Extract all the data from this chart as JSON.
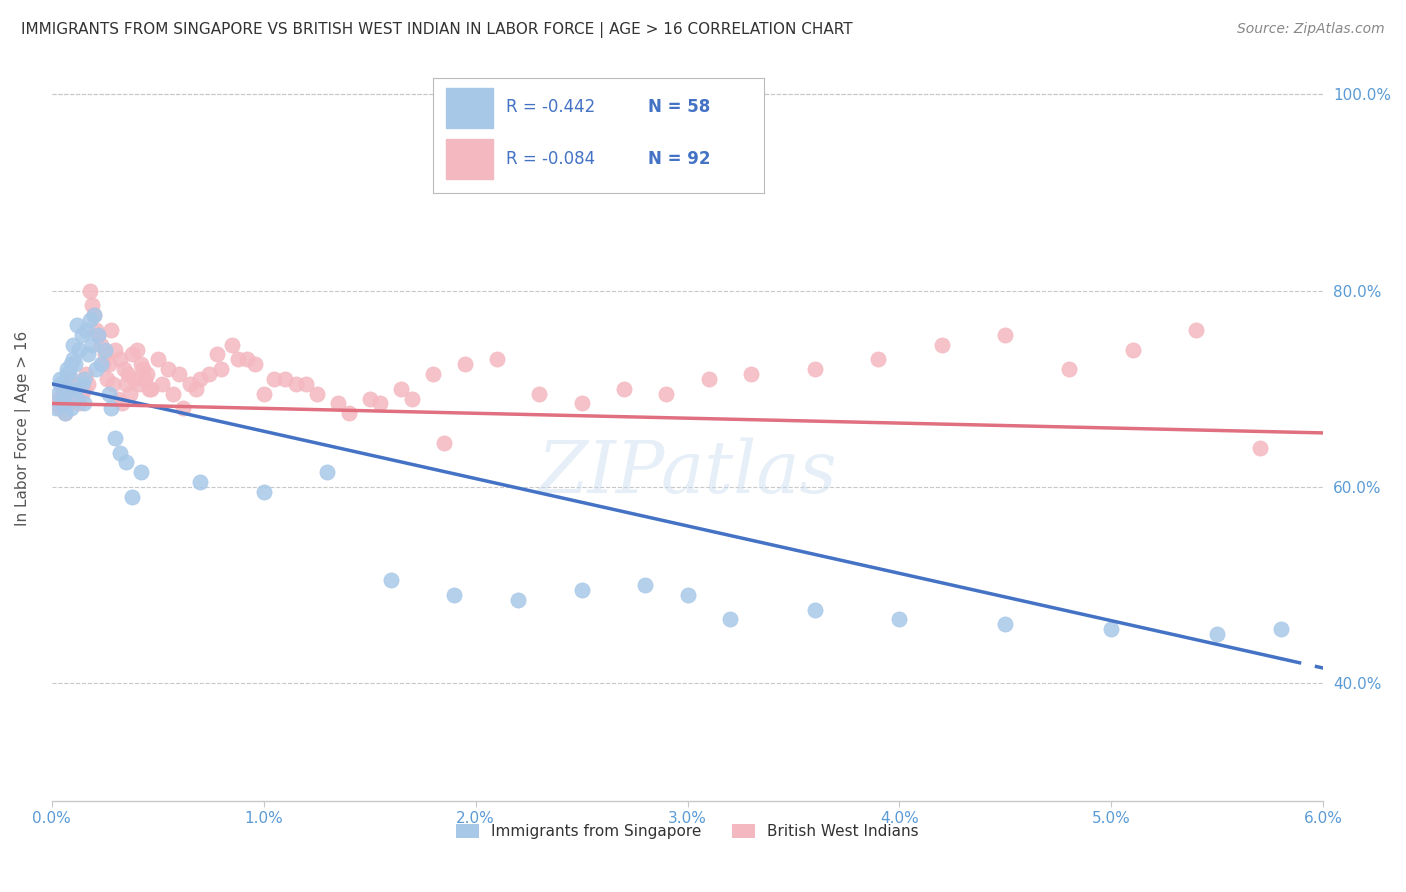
{
  "title": "IMMIGRANTS FROM SINGAPORE VS BRITISH WEST INDIAN IN LABOR FORCE | AGE > 16 CORRELATION CHART",
  "source": "Source: ZipAtlas.com",
  "ylabel": "In Labor Force | Age > 16",
  "xlim": [
    0.0,
    6.0
  ],
  "ylim": [
    28.0,
    104.0
  ],
  "yticks": [
    40.0,
    60.0,
    80.0,
    100.0
  ],
  "xticks": [
    0.0,
    1.0,
    2.0,
    3.0,
    4.0,
    5.0,
    6.0
  ],
  "legend_r_blue": "R = -0.442",
  "legend_n_blue": "N = 58",
  "legend_r_pink": "R = -0.084",
  "legend_n_pink": "N = 92",
  "legend_label_blue": "Immigrants from Singapore",
  "legend_label_pink": "British West Indians",
  "color_blue": "#A8C8E8",
  "color_pink": "#F4B8C0",
  "color_blue_line": "#4472C4",
  "color_pink_line": "#E07080",
  "color_legend_text": "#4472C4",
  "color_title": "#333333",
  "color_source": "#888888",
  "color_axis_ticks": "#5B9BD5",
  "color_grid": "#C8C8C8",
  "background": "#FFFFFF",
  "sg_trend_x0": 0.0,
  "sg_trend_y0": 70.5,
  "sg_trend_x1": 5.8,
  "sg_trend_y1": 42.5,
  "bwi_trend_x0": 0.0,
  "bwi_trend_y0": 68.5,
  "bwi_trend_x1": 6.0,
  "bwi_trend_y1": 65.5,
  "singapore_x": [
    0.02,
    0.03,
    0.04,
    0.04,
    0.05,
    0.05,
    0.06,
    0.06,
    0.06,
    0.07,
    0.07,
    0.08,
    0.08,
    0.09,
    0.09,
    0.1,
    0.1,
    0.11,
    0.11,
    0.12,
    0.12,
    0.13,
    0.14,
    0.14,
    0.15,
    0.15,
    0.16,
    0.17,
    0.18,
    0.19,
    0.2,
    0.21,
    0.22,
    0.23,
    0.25,
    0.27,
    0.28,
    0.3,
    0.32,
    0.35,
    0.38,
    0.42,
    0.7,
    1.0,
    1.3,
    1.6,
    1.9,
    2.2,
    2.5,
    2.8,
    3.0,
    3.6,
    4.0,
    4.5,
    5.0,
    5.5,
    5.8,
    3.2
  ],
  "singapore_y": [
    68.0,
    69.5,
    70.5,
    71.0,
    68.5,
    69.0,
    67.5,
    68.5,
    70.0,
    71.5,
    72.0,
    70.0,
    71.5,
    72.5,
    68.0,
    73.0,
    74.5,
    70.0,
    72.5,
    69.0,
    76.5,
    74.0,
    70.5,
    75.5,
    71.0,
    68.5,
    76.0,
    73.5,
    77.0,
    74.5,
    77.5,
    72.0,
    75.5,
    72.5,
    74.0,
    69.5,
    68.0,
    65.0,
    63.5,
    62.5,
    59.0,
    61.5,
    60.5,
    59.5,
    61.5,
    50.5,
    49.0,
    48.5,
    49.5,
    50.0,
    49.0,
    47.5,
    46.5,
    46.0,
    45.5,
    45.0,
    45.5,
    46.5
  ],
  "bwi_x": [
    0.02,
    0.03,
    0.04,
    0.05,
    0.06,
    0.07,
    0.08,
    0.09,
    0.1,
    0.11,
    0.12,
    0.13,
    0.14,
    0.15,
    0.16,
    0.17,
    0.18,
    0.19,
    0.2,
    0.21,
    0.22,
    0.23,
    0.25,
    0.27,
    0.28,
    0.3,
    0.32,
    0.34,
    0.36,
    0.38,
    0.4,
    0.42,
    0.44,
    0.46,
    0.5,
    0.55,
    0.6,
    0.65,
    0.7,
    0.78,
    0.85,
    0.92,
    1.0,
    1.1,
    1.2,
    1.35,
    1.5,
    1.65,
    1.8,
    1.95,
    2.1,
    2.3,
    2.5,
    2.7,
    2.9,
    3.1,
    3.3,
    3.6,
    3.9,
    4.2,
    4.5,
    4.8,
    5.1,
    5.4,
    5.7,
    0.24,
    0.26,
    0.29,
    0.31,
    0.33,
    0.35,
    0.37,
    0.39,
    0.41,
    0.43,
    0.45,
    0.47,
    0.52,
    0.57,
    0.62,
    0.68,
    0.74,
    0.8,
    0.88,
    0.96,
    1.05,
    1.15,
    1.25,
    1.4,
    1.55,
    1.7,
    1.85
  ],
  "bwi_y": [
    68.5,
    69.0,
    68.0,
    69.5,
    67.5,
    70.0,
    68.5,
    71.0,
    70.5,
    69.0,
    70.5,
    68.5,
    69.5,
    70.0,
    71.5,
    70.5,
    80.0,
    78.5,
    77.5,
    76.0,
    75.5,
    74.5,
    73.5,
    72.5,
    76.0,
    74.0,
    73.0,
    72.0,
    71.5,
    73.5,
    74.0,
    72.5,
    71.0,
    70.0,
    73.0,
    72.0,
    71.5,
    70.5,
    71.0,
    73.5,
    74.5,
    73.0,
    69.5,
    71.0,
    70.5,
    68.5,
    69.0,
    70.0,
    71.5,
    72.5,
    73.0,
    69.5,
    68.5,
    70.0,
    69.5,
    71.0,
    71.5,
    72.0,
    73.0,
    74.5,
    75.5,
    72.0,
    74.0,
    76.0,
    64.0,
    72.5,
    71.0,
    70.5,
    69.0,
    68.5,
    70.5,
    69.5,
    71.0,
    70.5,
    72.0,
    71.5,
    70.0,
    70.5,
    69.5,
    68.0,
    70.0,
    71.5,
    72.0,
    73.0,
    72.5,
    71.0,
    70.5,
    69.5,
    67.5,
    68.5,
    69.0,
    64.5
  ]
}
